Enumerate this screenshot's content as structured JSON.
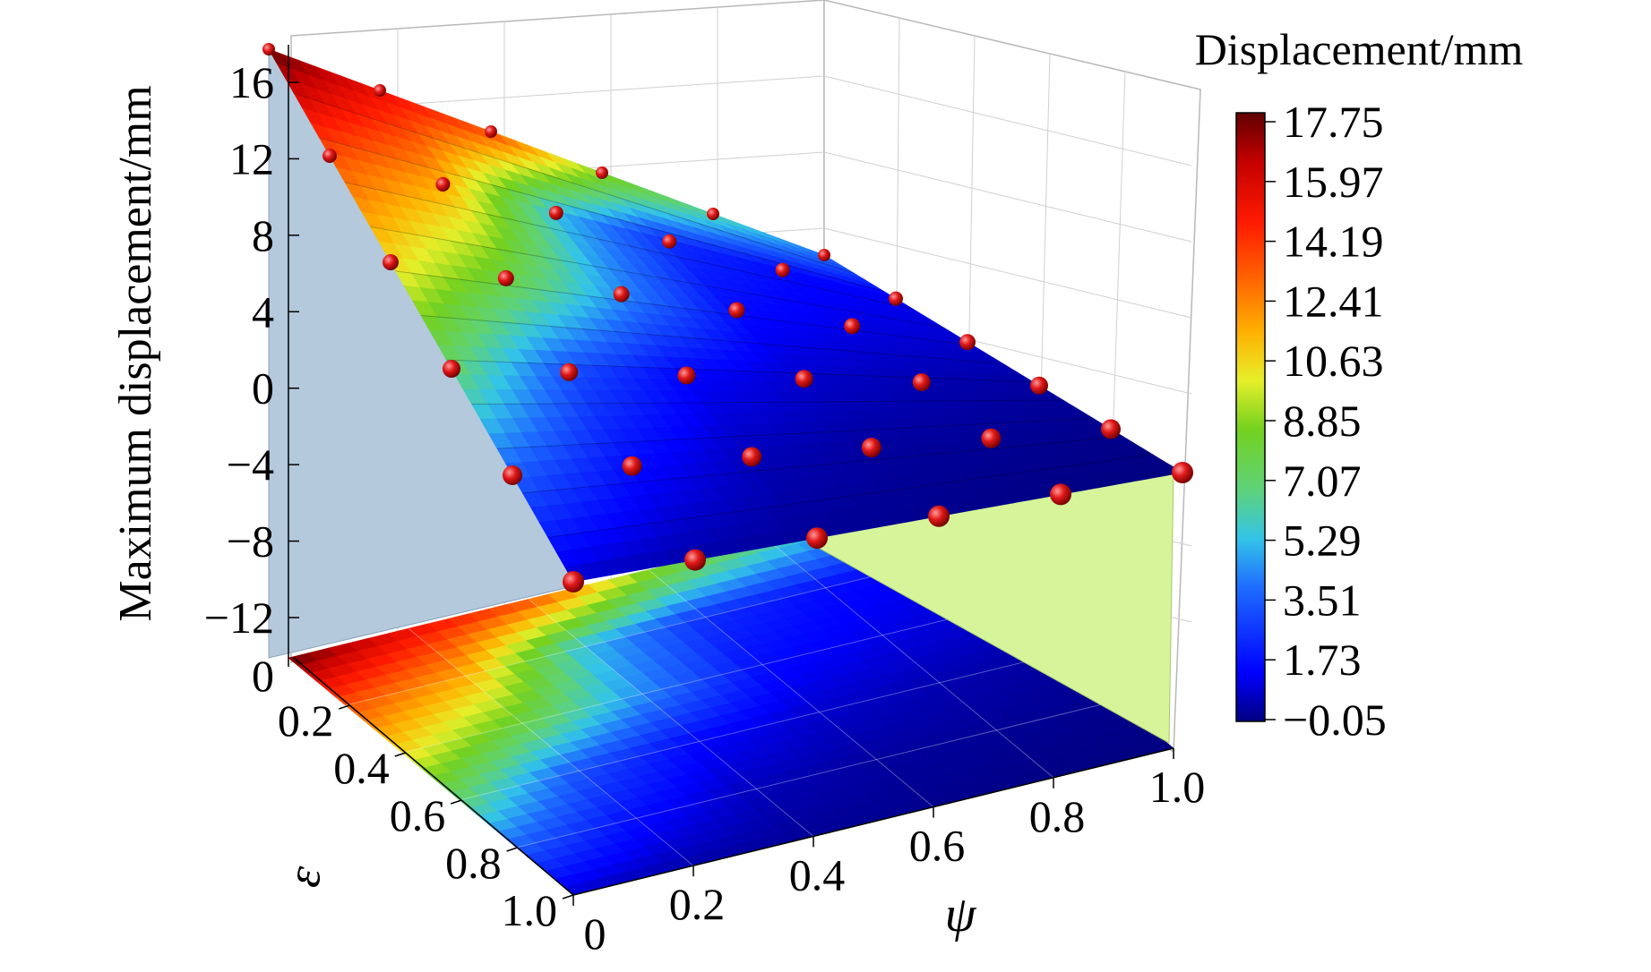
{
  "chart_data": {
    "type": "surface",
    "zlabel": "Maximum displacement/mm",
    "epsilon_label": "ε",
    "psi_label": "ψ",
    "colorbar_title": "Displacement/mm",
    "z_ticks": [
      "16",
      "12",
      "8",
      "4",
      "0",
      "−4",
      "−8",
      "−12"
    ],
    "epsilon_ticks": [
      "0",
      "0.2",
      "0.4",
      "0.6",
      "0.8",
      "1.0"
    ],
    "psi_ticks": [
      "0",
      "0.2",
      "0.4",
      "0.6",
      "0.8",
      "1.0"
    ],
    "colorbar_ticks": [
      "17.75",
      "15.97",
      "14.19",
      "12.41",
      "10.63",
      "8.85",
      "7.07",
      "5.29",
      "3.51",
      "1.73",
      "−0.05"
    ],
    "zlim": [
      -14,
      18
    ],
    "epsilon": [
      0,
      0.2,
      0.4,
      0.6,
      0.8,
      1.0
    ],
    "psi": [
      0,
      0.2,
      0.4,
      0.6,
      0.8,
      1.0
    ],
    "displacement": [
      [
        17.75,
        15.2,
        13.5,
        8.8,
        6.2,
        4.0
      ],
      [
        13.4,
        11.5,
        5.2,
        2.4,
        1.6,
        1.2
      ],
      [
        10.5,
        7.8,
        4.4,
        1.6,
        1.1,
        0.8
      ],
      [
        7.0,
        3.2,
        1.4,
        0.8,
        0.5,
        0.3
      ],
      [
        3.6,
        1.6,
        0.6,
        0.3,
        0.2,
        0.1
      ],
      [
        0.8,
        0.4,
        0.2,
        0.1,
        0.0,
        -0.05
      ]
    ]
  }
}
